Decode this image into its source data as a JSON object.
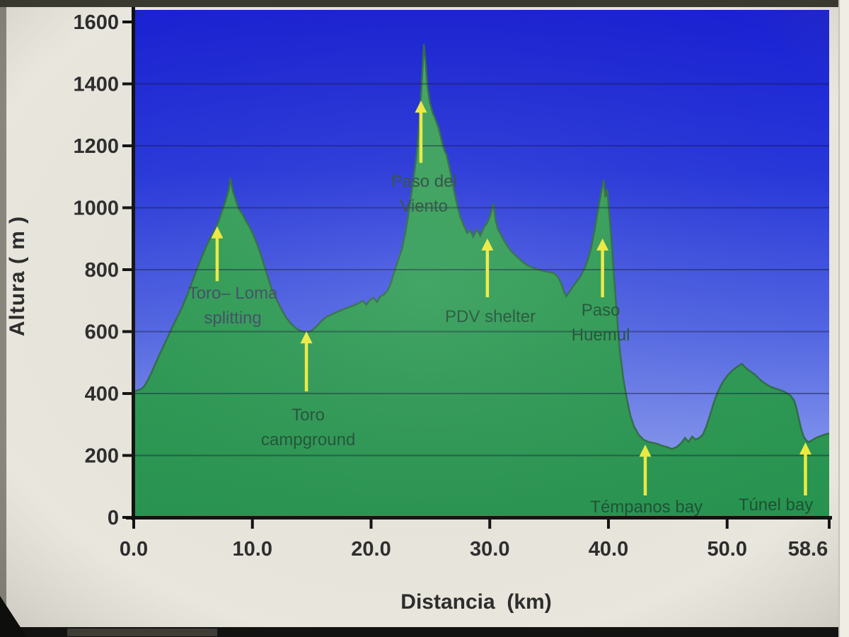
{
  "chart_data": {
    "type": "area",
    "title": "",
    "xlabel": "Distancia  (km)",
    "ylabel": "Altura ( m )",
    "xlim": [
      0,
      58.6
    ],
    "ylim": [
      0,
      1600
    ],
    "grid": "horizontal-200m",
    "legend": "none",
    "x_ticks": [
      {
        "value": 0,
        "label": "0.0"
      },
      {
        "value": 10,
        "label": "10.0"
      },
      {
        "value": 20,
        "label": "20.0"
      },
      {
        "value": 30,
        "label": "30.0"
      },
      {
        "value": 40,
        "label": "40.0"
      },
      {
        "value": 50,
        "label": "50.0"
      },
      {
        "value": 58.6,
        "label": "58.6"
      }
    ],
    "y_ticks": [
      {
        "value": 0,
        "label": "0"
      },
      {
        "value": 200,
        "label": "200"
      },
      {
        "value": 400,
        "label": "400"
      },
      {
        "value": 600,
        "label": "600"
      },
      {
        "value": 800,
        "label": "800"
      },
      {
        "value": 1000,
        "label": "1000"
      },
      {
        "value": 1200,
        "label": "1200"
      },
      {
        "value": 1400,
        "label": "1400"
      },
      {
        "value": 1600,
        "label": "1600"
      }
    ],
    "series": [
      {
        "name": "elevation-profile",
        "points": [
          [
            0,
            405
          ],
          [
            0.3,
            410
          ],
          [
            0.6,
            414
          ],
          [
            0.9,
            424
          ],
          [
            1.2,
            444
          ],
          [
            1.5,
            468
          ],
          [
            1.8,
            494
          ],
          [
            2.1,
            520
          ],
          [
            2.5,
            552
          ],
          [
            2.9,
            585
          ],
          [
            3.3,
            618
          ],
          [
            3.7,
            649
          ],
          [
            4.1,
            681
          ],
          [
            4.5,
            718
          ],
          [
            4.9,
            759
          ],
          [
            5.3,
            799
          ],
          [
            5.7,
            838
          ],
          [
            6.1,
            874
          ],
          [
            6.5,
            906
          ],
          [
            6.8,
            928
          ],
          [
            7.1,
            952
          ],
          [
            7.4,
            985
          ],
          [
            7.7,
            1018
          ],
          [
            8,
            1058
          ],
          [
            8.15,
            1096
          ],
          [
            8.3,
            1062
          ],
          [
            8.55,
            1030
          ],
          [
            8.85,
            996
          ],
          [
            9.15,
            980
          ],
          [
            9.45,
            958
          ],
          [
            9.75,
            938
          ],
          [
            10.05,
            915
          ],
          [
            10.4,
            882
          ],
          [
            10.8,
            838
          ],
          [
            11.2,
            788
          ],
          [
            11.6,
            740
          ],
          [
            12,
            706
          ],
          [
            12.4,
            675
          ],
          [
            12.8,
            648
          ],
          [
            13.2,
            628
          ],
          [
            13.6,
            613
          ],
          [
            14,
            603
          ],
          [
            14.4,
            599
          ],
          [
            14.8,
            600
          ],
          [
            15.1,
            606
          ],
          [
            15.4,
            617
          ],
          [
            15.8,
            633
          ],
          [
            16.2,
            647
          ],
          [
            16.6,
            654
          ],
          [
            17,
            661
          ],
          [
            17.4,
            668
          ],
          [
            17.8,
            674
          ],
          [
            18.2,
            680
          ],
          [
            18.6,
            685
          ],
          [
            19,
            693
          ],
          [
            19.3,
            699
          ],
          [
            19.6,
            687
          ],
          [
            19.9,
            702
          ],
          [
            20.2,
            709
          ],
          [
            20.5,
            696
          ],
          [
            20.8,
            714
          ],
          [
            21.1,
            720
          ],
          [
            21.4,
            733
          ],
          [
            21.7,
            760
          ],
          [
            22,
            798
          ],
          [
            22.3,
            833
          ],
          [
            22.6,
            866
          ],
          [
            22.9,
            920
          ],
          [
            23.2,
            992
          ],
          [
            23.5,
            1072
          ],
          [
            23.8,
            1160
          ],
          [
            24.05,
            1265
          ],
          [
            24.25,
            1390
          ],
          [
            24.45,
            1528
          ],
          [
            24.6,
            1468
          ],
          [
            24.75,
            1392
          ],
          [
            24.95,
            1340
          ],
          [
            25.2,
            1306
          ],
          [
            25.45,
            1283
          ],
          [
            25.7,
            1256
          ],
          [
            25.95,
            1216
          ],
          [
            26.15,
            1188
          ],
          [
            26.35,
            1172
          ],
          [
            26.6,
            1130
          ],
          [
            26.9,
            1072
          ],
          [
            27.2,
            1018
          ],
          [
            27.5,
            972
          ],
          [
            27.8,
            944
          ],
          [
            28.1,
            918
          ],
          [
            28.35,
            928
          ],
          [
            28.6,
            906
          ],
          [
            28.9,
            930
          ],
          [
            29.2,
            910
          ],
          [
            29.5,
            936
          ],
          [
            29.8,
            952
          ],
          [
            30.05,
            976
          ],
          [
            30.3,
            1014
          ],
          [
            30.5,
            958
          ],
          [
            30.7,
            930
          ],
          [
            30.95,
            912
          ],
          [
            31.2,
            894
          ],
          [
            31.5,
            876
          ],
          [
            31.8,
            860
          ],
          [
            32.1,
            848
          ],
          [
            32.4,
            838
          ],
          [
            32.7,
            828
          ],
          [
            33,
            818
          ],
          [
            33.4,
            810
          ],
          [
            33.8,
            804
          ],
          [
            34.2,
            799
          ],
          [
            34.6,
            795
          ],
          [
            35,
            792
          ],
          [
            35.4,
            789
          ],
          [
            35.7,
            779
          ],
          [
            36,
            758
          ],
          [
            36.25,
            729
          ],
          [
            36.45,
            714
          ],
          [
            36.75,
            731
          ],
          [
            37.05,
            748
          ],
          [
            37.35,
            763
          ],
          [
            37.65,
            779
          ],
          [
            37.95,
            801
          ],
          [
            38.25,
            831
          ],
          [
            38.55,
            872
          ],
          [
            38.85,
            932
          ],
          [
            39.15,
            1000
          ],
          [
            39.4,
            1052
          ],
          [
            39.6,
            1090
          ],
          [
            39.75,
            1034
          ],
          [
            39.9,
            1060
          ],
          [
            40.05,
            988
          ],
          [
            40.25,
            898
          ],
          [
            40.45,
            788
          ],
          [
            40.7,
            662
          ],
          [
            40.95,
            542
          ],
          [
            41.25,
            448
          ],
          [
            41.55,
            383
          ],
          [
            41.85,
            329
          ],
          [
            42.15,
            294
          ],
          [
            42.55,
            267
          ],
          [
            42.95,
            251
          ],
          [
            43.35,
            244
          ],
          [
            43.75,
            241
          ],
          [
            44.15,
            237
          ],
          [
            44.55,
            231
          ],
          [
            44.95,
            227
          ],
          [
            45.35,
            221
          ],
          [
            45.75,
            227
          ],
          [
            46.15,
            241
          ],
          [
            46.45,
            257
          ],
          [
            46.75,
            244
          ],
          [
            47.05,
            261
          ],
          [
            47.35,
            251
          ],
          [
            47.65,
            257
          ],
          [
            47.95,
            267
          ],
          [
            48.25,
            294
          ],
          [
            48.55,
            329
          ],
          [
            48.85,
            367
          ],
          [
            49.15,
            399
          ],
          [
            49.45,
            424
          ],
          [
            49.75,
            444
          ],
          [
            50.05,
            459
          ],
          [
            50.35,
            471
          ],
          [
            50.65,
            481
          ],
          [
            50.95,
            489
          ],
          [
            51.25,
            496
          ],
          [
            51.45,
            487
          ],
          [
            51.75,
            477
          ],
          [
            52.05,
            469
          ],
          [
            52.35,
            461
          ],
          [
            52.65,
            449
          ],
          [
            52.95,
            439
          ],
          [
            53.25,
            431
          ],
          [
            53.55,
            424
          ],
          [
            53.85,
            419
          ],
          [
            54.15,
            415
          ],
          [
            54.45,
            411
          ],
          [
            54.75,
            407
          ],
          [
            55.05,
            401
          ],
          [
            55.35,
            393
          ],
          [
            55.65,
            377
          ],
          [
            55.85,
            351
          ],
          [
            56.05,
            317
          ],
          [
            56.25,
            284
          ],
          [
            56.45,
            261
          ],
          [
            56.65,
            249
          ],
          [
            56.85,
            243
          ],
          [
            57.15,
            249
          ],
          [
            57.45,
            256
          ],
          [
            57.75,
            261
          ],
          [
            58.05,
            265
          ],
          [
            58.35,
            269
          ],
          [
            58.6,
            271
          ]
        ]
      }
    ],
    "annotations": [
      {
        "id": "toro-loma-splitting",
        "lines": [
          "Toro– Loma",
          "splitting"
        ],
        "arrow": {
          "km": 7.03,
          "tip_m": 940,
          "tail_m": 763
        },
        "text": {
          "km": 8.35,
          "m": 725
        },
        "theme": "slate"
      },
      {
        "id": "toro-campground",
        "lines": [
          "Toro",
          "campground"
        ],
        "arrow": {
          "km": 14.55,
          "tip_m": 601,
          "tail_m": 407
        },
        "text": {
          "km": 14.7,
          "m": 331
        },
        "theme": "green"
      },
      {
        "id": "paso-del-viento",
        "lines": [
          "Paso del",
          "Viento"
        ],
        "arrow": {
          "km": 24.2,
          "tip_m": 1346,
          "tail_m": 1145
        },
        "text": {
          "km": 24.45,
          "m": 1086
        },
        "theme": "teal"
      },
      {
        "id": "pdv-shelter",
        "lines": [
          "PDV shelter"
        ],
        "arrow": {
          "km": 29.8,
          "tip_m": 901,
          "tail_m": 711
        },
        "text": {
          "km": 30.05,
          "m": 649
        },
        "theme": "green"
      },
      {
        "id": "paso-huemul",
        "lines": [
          "Paso",
          "Huemul"
        ],
        "arrow": {
          "km": 39.5,
          "tip_m": 901,
          "tail_m": 711
        },
        "text": {
          "km": 39.35,
          "m": 670
        },
        "theme": "green"
      },
      {
        "id": "tempanos-bay",
        "lines": [
          "Témpanos bay"
        ],
        "arrow": {
          "km": 43.1,
          "tip_m": 235,
          "tail_m": 71
        },
        "text": {
          "km": 43.2,
          "m": 34
        },
        "theme": "green"
      },
      {
        "id": "tunel-bay",
        "lines": [
          "Túnel bay"
        ],
        "arrow": {
          "km": 56.6,
          "tip_m": 242,
          "tail_m": 71
        },
        "text": {
          "km": 54.1,
          "m": 41
        },
        "theme": "green"
      }
    ],
    "colors": {
      "sky_top": "#1a21d2",
      "sky_mid": "#4f63e3",
      "sky_bottom": "#93a4f1",
      "terrain_top": "#4aa866",
      "terrain_mid": "#2f9c55",
      "terrain_bottom": "#279350",
      "terrain_edge": "#2f6b45",
      "gridline": "rgba(15,20,55,0.42)",
      "axis": "#111111",
      "tick_label": "#2c2c2c",
      "arrow": "#eeeb3f",
      "label_green": "#1d5134",
      "label_slate": "#3d4b63",
      "label_teal": "#2d4a42",
      "slide_background": "#e8e6dd"
    }
  }
}
